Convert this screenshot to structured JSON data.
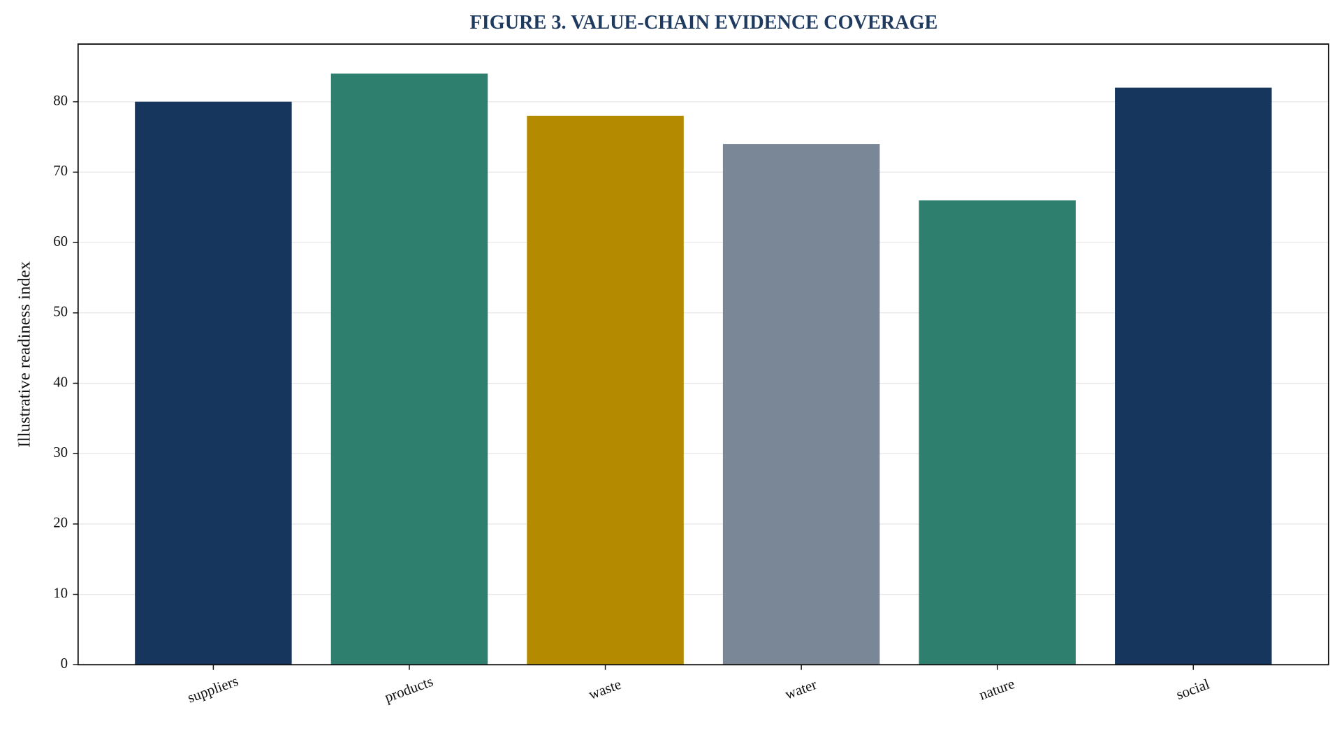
{
  "chart_data": {
    "type": "bar",
    "title": "FIGURE 3. VALUE-CHAIN EVIDENCE COVERAGE",
    "y_label": "Illustrative readiness index",
    "categories": [
      "suppliers",
      "products",
      "waste",
      "water",
      "nature",
      "social"
    ],
    "values": [
      80,
      84,
      78,
      74,
      66,
      82
    ],
    "colors": [
      "#17365d",
      "#2e7f6e",
      "#b38a00",
      "#7a8796",
      "#2e7f6e",
      "#17365d"
    ],
    "ylim": [
      0,
      88.2
    ],
    "yticks": [
      0,
      10,
      20,
      30,
      40,
      50,
      60,
      70,
      80
    ],
    "grid": true
  }
}
